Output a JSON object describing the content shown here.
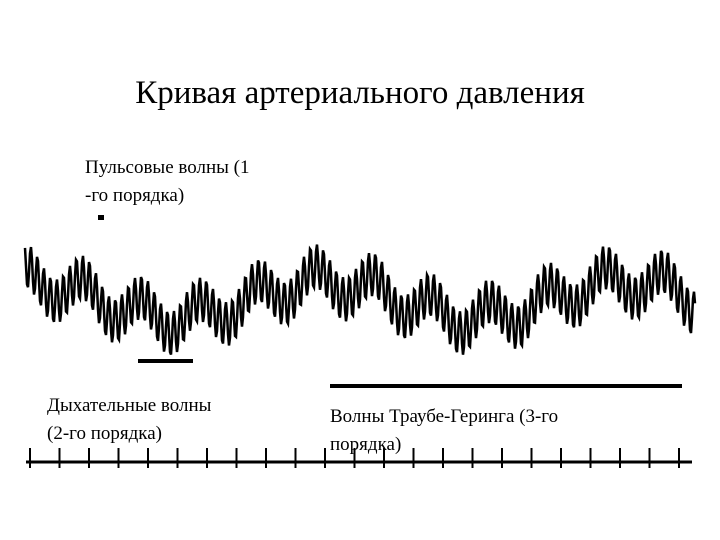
{
  "title": "Кривая артериального давления",
  "labels": [
    {
      "lines": [
        "Пульсовые волны (1",
        "-го порядка)"
      ]
    },
    {
      "lines": [
        "Дыхательные волны",
        "(2-го порядка)"
      ]
    },
    {
      "lines": [
        "Волны Траубе-Геринга (3-го",
        "порядка)"
      ]
    }
  ]
}
